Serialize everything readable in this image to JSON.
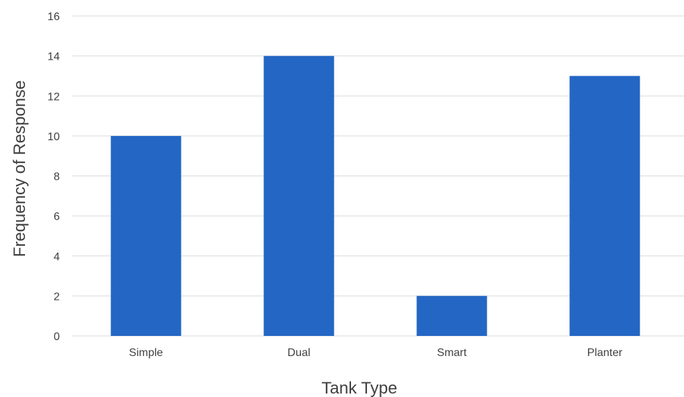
{
  "chart_data": {
    "type": "bar",
    "title": "",
    "xlabel": "Tank Type",
    "ylabel": "Frequency of Response",
    "categories": [
      "Simple",
      "Dual",
      "Smart",
      "Planter"
    ],
    "values": [
      10,
      14,
      2,
      13
    ],
    "ylim": [
      0,
      16
    ],
    "yticks": [
      "0",
      "2",
      "4",
      "6",
      "8",
      "10",
      "12",
      "14",
      "16"
    ],
    "grid": true,
    "legend": "none",
    "colors": {
      "bar": "#2366C4",
      "grid": "#D9D9D9",
      "text": "#404040"
    }
  }
}
